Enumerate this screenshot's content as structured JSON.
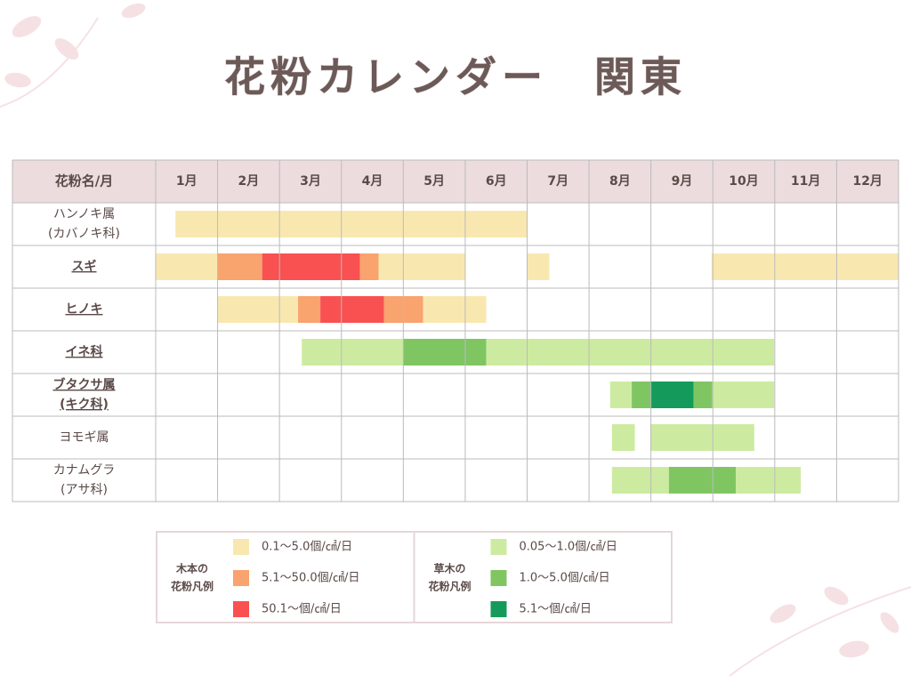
{
  "title": "花粉カレンダー　関東",
  "header": {
    "name": "花粉名/月",
    "months": [
      "1月",
      "2月",
      "3月",
      "4月",
      "5月",
      "6月",
      "7月",
      "8月",
      "9月",
      "10月",
      "11月",
      "12月"
    ]
  },
  "rows": [
    {
      "name": [
        "ハンノキ属",
        "(カバノキ科)"
      ],
      "bold": false,
      "segments": [
        {
          "start": 0.32,
          "end": 6.0,
          "color": "#f8e8b0"
        }
      ]
    },
    {
      "name": [
        "スギ"
      ],
      "bold": true,
      "segments": [
        {
          "start": 0,
          "end": 1.0,
          "color": "#f8e8b0"
        },
        {
          "start": 1.0,
          "end": 1.72,
          "color": "#f9a36e"
        },
        {
          "start": 1.72,
          "end": 3.3,
          "color": "#f95151"
        },
        {
          "start": 3.3,
          "end": 3.6,
          "color": "#f9a36e"
        },
        {
          "start": 3.6,
          "end": 5.0,
          "color": "#f8e8b0"
        },
        {
          "start": 6.0,
          "end": 6.36,
          "color": "#f8e8b0"
        },
        {
          "start": 8.98,
          "end": 12,
          "color": "#f8e8b0"
        }
      ]
    },
    {
      "name": [
        "ヒノキ"
      ],
      "bold": true,
      "segments": [
        {
          "start": 1.0,
          "end": 2.3,
          "color": "#f8e8b0"
        },
        {
          "start": 2.3,
          "end": 2.66,
          "color": "#f9a36e"
        },
        {
          "start": 2.66,
          "end": 3.69,
          "color": "#f95151"
        },
        {
          "start": 3.69,
          "end": 4.32,
          "color": "#f9a36e"
        },
        {
          "start": 4.32,
          "end": 5.34,
          "color": "#f8e8b0"
        }
      ]
    },
    {
      "name": [
        "イネ科"
      ],
      "bold": true,
      "segments": [
        {
          "start": 2.36,
          "end": 4.0,
          "color": "#cdeba0"
        },
        {
          "start": 4.0,
          "end": 5.34,
          "color": "#7fc663"
        },
        {
          "start": 5.34,
          "end": 9.99,
          "color": "#cdeba0"
        }
      ]
    },
    {
      "name": [
        "ブタクサ属",
        "(キク科)"
      ],
      "bold": true,
      "segments": [
        {
          "start": 7.34,
          "end": 7.69,
          "color": "#cdeba0"
        },
        {
          "start": 7.69,
          "end": 7.99,
          "color": "#7fc663"
        },
        {
          "start": 7.99,
          "end": 8.69,
          "color": "#149b5b"
        },
        {
          "start": 8.69,
          "end": 8.99,
          "color": "#7fc663"
        },
        {
          "start": 8.99,
          "end": 9.99,
          "color": "#cdeba0"
        }
      ]
    },
    {
      "name": [
        "ヨモギ属"
      ],
      "bold": false,
      "segments": [
        {
          "start": 7.37,
          "end": 7.74,
          "color": "#cdeba0"
        },
        {
          "start": 7.99,
          "end": 9.67,
          "color": "#cdeba0"
        }
      ]
    },
    {
      "name": [
        "カナムグラ",
        "(アサ科)"
      ],
      "bold": false,
      "segments": [
        {
          "start": 7.37,
          "end": 8.29,
          "color": "#cdeba0"
        },
        {
          "start": 8.29,
          "end": 9.37,
          "color": "#7fc663"
        },
        {
          "start": 9.37,
          "end": 10.42,
          "color": "#cdeba0"
        }
      ]
    }
  ],
  "legends": [
    {
      "label": [
        "木本の",
        "花粉凡例"
      ],
      "items": [
        {
          "label": "0.1〜5.0個/㎠/日",
          "color": "#f8e8b0"
        },
        {
          "label": "5.1〜50.0個/㎠/日",
          "color": "#f9a36e"
        },
        {
          "label": "50.1〜個/㎠/日",
          "color": "#f95151"
        }
      ]
    },
    {
      "label": [
        "草木の",
        "花粉凡例"
      ],
      "items": [
        {
          "label": "0.05〜1.0個/㎠/日",
          "color": "#cdeba0"
        },
        {
          "label": "1.0〜5.0個/㎠/日",
          "color": "#7fc663"
        },
        {
          "label": "5.1〜個/㎠/日",
          "color": "#149b5b"
        }
      ]
    }
  ]
}
